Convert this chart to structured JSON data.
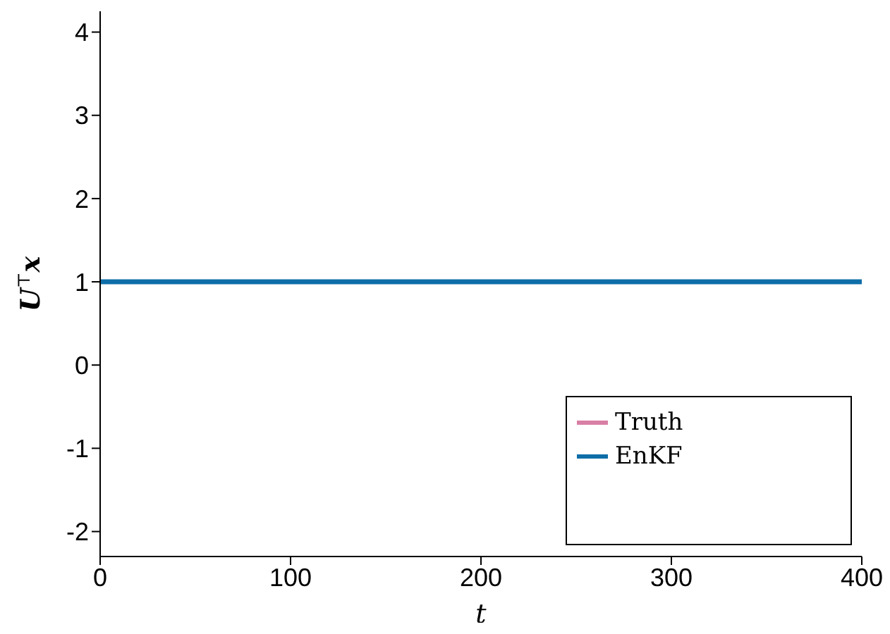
{
  "chart_data": {
    "type": "line",
    "xlabel": "t",
    "ylabel": "U$^{⊤}$x",
    "x": [
      0,
      400
    ],
    "series": [
      {
        "name": "Truth",
        "color": "#d87fa5",
        "values": [
          null,
          null
        ]
      },
      {
        "name": "EnKF",
        "color": "#0f6ea8",
        "values": [
          1,
          1
        ]
      }
    ],
    "xlim": [
      0,
      400
    ],
    "xticks": [
      0,
      100,
      200,
      300,
      400
    ],
    "ylim": [
      -2.3,
      4.25
    ],
    "yticks": [
      -2,
      -1,
      0,
      1,
      2,
      3,
      4
    ],
    "legend": "bottom right",
    "marker": "none",
    "line_style": "solid"
  }
}
